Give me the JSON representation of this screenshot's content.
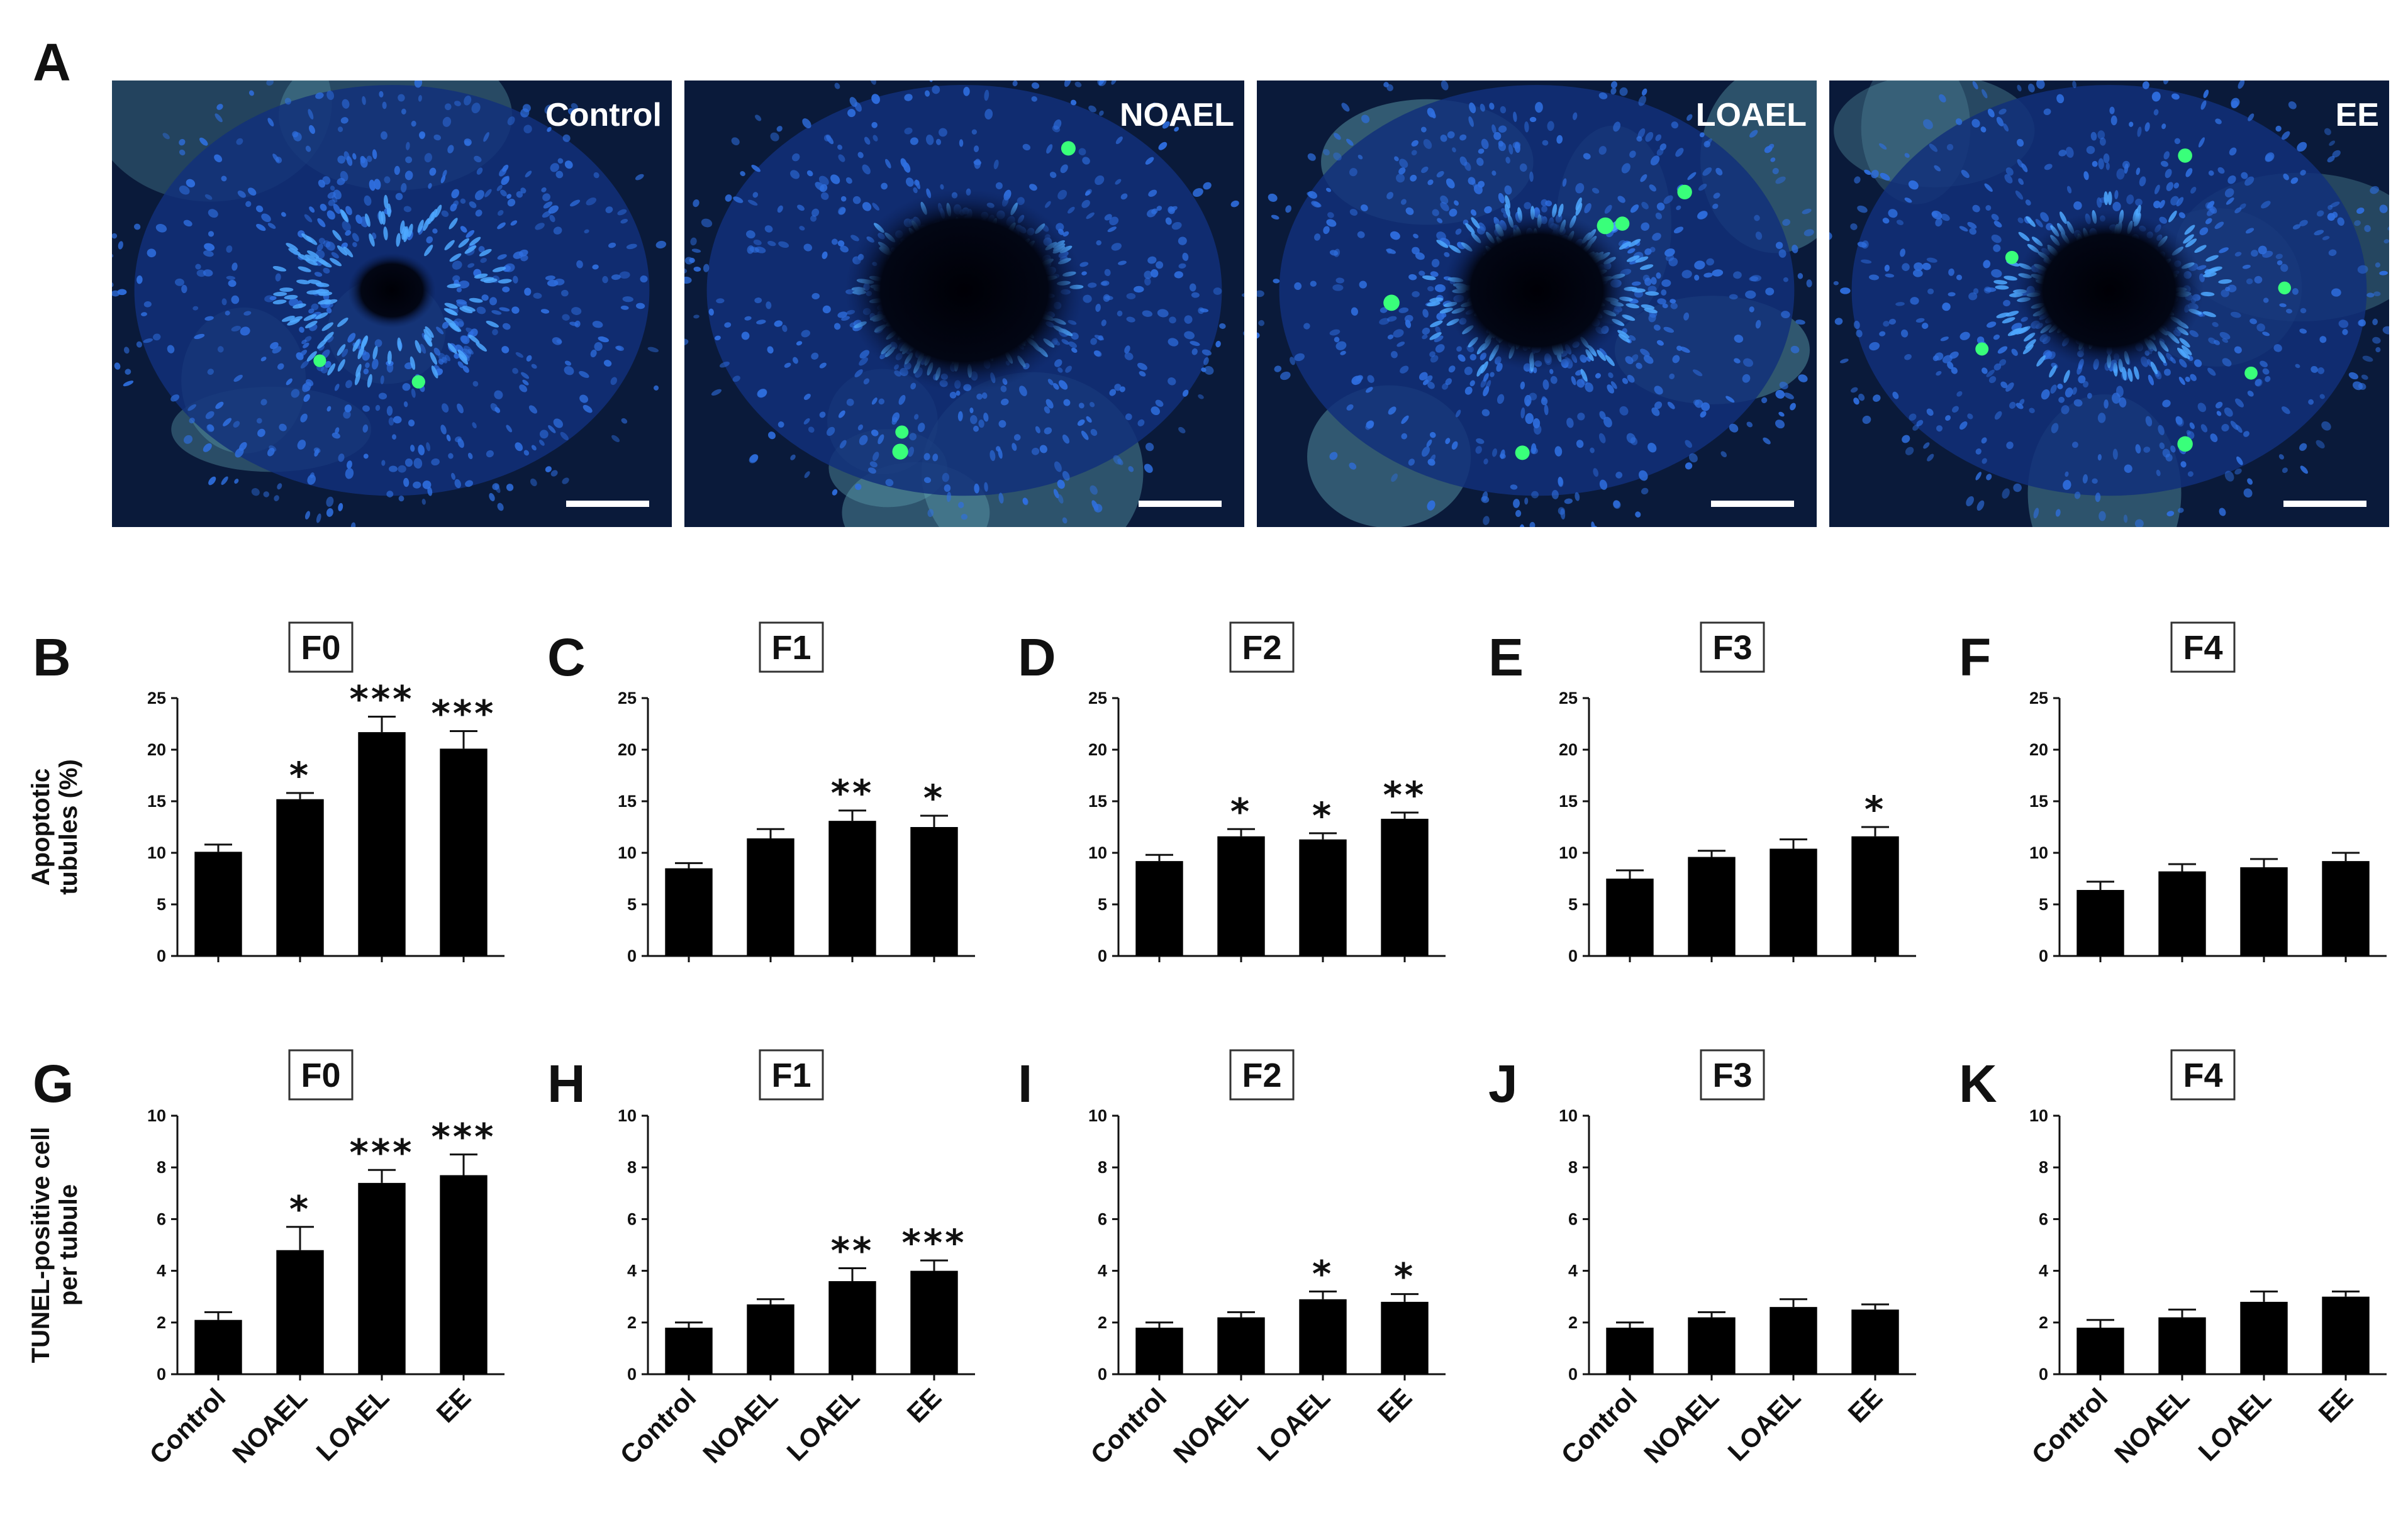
{
  "figure": {
    "panel_A_letter": "A",
    "micrographs": [
      {
        "label": "Control",
        "green_cells": 2
      },
      {
        "label": "NOAEL",
        "green_cells": 3
      },
      {
        "label": "LOAEL",
        "green_cells": 5
      },
      {
        "label": "EE",
        "green_cells": 6
      }
    ],
    "colors": {
      "background_tissue": "#0a1a3a",
      "nuclei": "#2f6fe0",
      "tunel_positive": "#39ff7a",
      "interstitium": "#5ea0b0",
      "bar": "#000000"
    }
  },
  "chart_data": [
    {
      "panel": "B",
      "type": "bar",
      "generation": "F0",
      "ylabel": "Apoptotic tubules (%)",
      "ylim": [
        0,
        25
      ],
      "yticks": [
        0,
        5,
        10,
        15,
        20,
        25
      ],
      "categories": [
        "Control",
        "NOAEL",
        "LOAEL",
        "EE"
      ],
      "values": [
        10.1,
        15.2,
        21.7,
        20.1
      ],
      "errors": [
        0.7,
        0.6,
        1.5,
        1.7
      ],
      "significance": [
        "",
        "*",
        "***",
        "***"
      ]
    },
    {
      "panel": "C",
      "type": "bar",
      "generation": "F1",
      "ylabel": "",
      "ylim": [
        0,
        25
      ],
      "yticks": [
        0,
        5,
        10,
        15,
        20,
        25
      ],
      "categories": [
        "Control",
        "NOAEL",
        "LOAEL",
        "EE"
      ],
      "values": [
        8.5,
        11.4,
        13.1,
        12.5
      ],
      "errors": [
        0.5,
        0.9,
        1.0,
        1.1
      ],
      "significance": [
        "",
        "",
        "**",
        "*"
      ]
    },
    {
      "panel": "D",
      "type": "bar",
      "generation": "F2",
      "ylabel": "",
      "ylim": [
        0,
        25
      ],
      "yticks": [
        0,
        5,
        10,
        15,
        20,
        25
      ],
      "categories": [
        "Control",
        "NOAEL",
        "LOAEL",
        "EE"
      ],
      "values": [
        9.2,
        11.6,
        11.3,
        13.3
      ],
      "errors": [
        0.6,
        0.7,
        0.6,
        0.6
      ],
      "significance": [
        "",
        "*",
        "*",
        "**"
      ]
    },
    {
      "panel": "E",
      "type": "bar",
      "generation": "F3",
      "ylabel": "",
      "ylim": [
        0,
        25
      ],
      "yticks": [
        0,
        5,
        10,
        15,
        20,
        25
      ],
      "categories": [
        "Control",
        "NOAEL",
        "LOAEL",
        "EE"
      ],
      "values": [
        7.5,
        9.6,
        10.4,
        11.6
      ],
      "errors": [
        0.8,
        0.6,
        0.9,
        0.9
      ],
      "significance": [
        "",
        "",
        "",
        "*"
      ]
    },
    {
      "panel": "F",
      "type": "bar",
      "generation": "F4",
      "ylabel": "",
      "ylim": [
        0,
        25
      ],
      "yticks": [
        0,
        5,
        10,
        15,
        20,
        25
      ],
      "categories": [
        "Control",
        "NOAEL",
        "LOAEL",
        "EE"
      ],
      "values": [
        6.4,
        8.2,
        8.6,
        9.2
      ],
      "errors": [
        0.8,
        0.7,
        0.8,
        0.8
      ],
      "significance": [
        "",
        "",
        "",
        ""
      ]
    },
    {
      "panel": "G",
      "type": "bar",
      "generation": "F0",
      "ylabel": "TUNEL-positive cell per tubule",
      "ylim": [
        0,
        10
      ],
      "yticks": [
        0,
        2,
        4,
        6,
        8,
        10
      ],
      "categories": [
        "Control",
        "NOAEL",
        "LOAEL",
        "EE"
      ],
      "values": [
        2.1,
        4.8,
        7.4,
        7.7
      ],
      "errors": [
        0.3,
        0.9,
        0.5,
        0.8
      ],
      "significance": [
        "",
        "*",
        "***",
        "***"
      ]
    },
    {
      "panel": "H",
      "type": "bar",
      "generation": "F1",
      "ylabel": "",
      "ylim": [
        0,
        10
      ],
      "yticks": [
        0,
        2,
        4,
        6,
        8,
        10
      ],
      "categories": [
        "Control",
        "NOAEL",
        "LOAEL",
        "EE"
      ],
      "values": [
        1.8,
        2.7,
        3.6,
        4.0
      ],
      "errors": [
        0.2,
        0.2,
        0.5,
        0.4
      ],
      "significance": [
        "",
        "",
        "**",
        "***"
      ]
    },
    {
      "panel": "I",
      "type": "bar",
      "generation": "F2",
      "ylabel": "",
      "ylim": [
        0,
        10
      ],
      "yticks": [
        0,
        2,
        4,
        6,
        8,
        10
      ],
      "categories": [
        "Control",
        "NOAEL",
        "LOAEL",
        "EE"
      ],
      "values": [
        1.8,
        2.2,
        2.9,
        2.8
      ],
      "errors": [
        0.2,
        0.2,
        0.3,
        0.3
      ],
      "significance": [
        "",
        "",
        "*",
        "*"
      ]
    },
    {
      "panel": "J",
      "type": "bar",
      "generation": "F3",
      "ylabel": "",
      "ylim": [
        0,
        10
      ],
      "yticks": [
        0,
        2,
        4,
        6,
        8,
        10
      ],
      "categories": [
        "Control",
        "NOAEL",
        "LOAEL",
        "EE"
      ],
      "values": [
        1.8,
        2.2,
        2.6,
        2.5
      ],
      "errors": [
        0.2,
        0.2,
        0.3,
        0.2
      ],
      "significance": [
        "",
        "",
        "",
        ""
      ]
    },
    {
      "panel": "K",
      "type": "bar",
      "generation": "F4",
      "ylabel": "",
      "ylim": [
        0,
        10
      ],
      "yticks": [
        0,
        2,
        4,
        6,
        8,
        10
      ],
      "categories": [
        "Control",
        "NOAEL",
        "LOAEL",
        "EE"
      ],
      "values": [
        1.8,
        2.2,
        2.8,
        3.0
      ],
      "errors": [
        0.3,
        0.3,
        0.4,
        0.2
      ],
      "significance": [
        "",
        "",
        "",
        ""
      ]
    }
  ]
}
